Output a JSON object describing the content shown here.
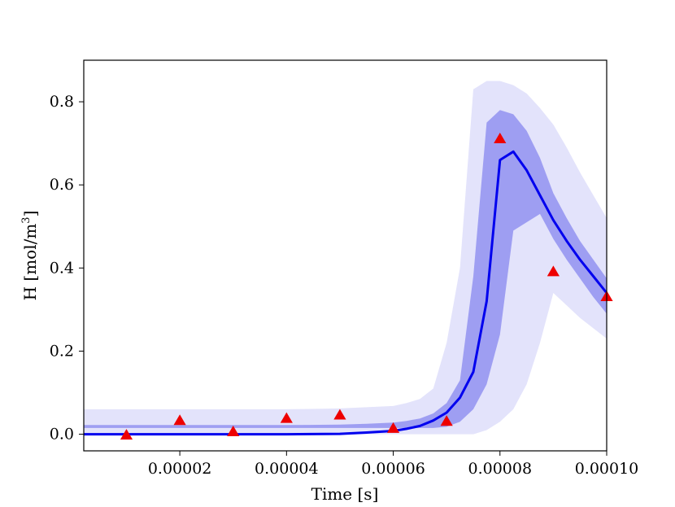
{
  "chart_data": {
    "type": "line",
    "xlabel": "Time [s]",
    "ylabel_main": "H [mol/m",
    "ylabel_sup": "3",
    "ylabel_close": "]",
    "xlim": [
      2e-06,
      0.0001
    ],
    "ylim": [
      -0.04,
      0.9
    ],
    "x_ticks": [
      {
        "value": 2e-05,
        "label": "0.00002"
      },
      {
        "value": 4e-05,
        "label": "0.00004"
      },
      {
        "value": 6e-05,
        "label": "0.00006"
      },
      {
        "value": 8e-05,
        "label": "0.00008"
      },
      {
        "value": 0.0001,
        "label": "0.00010"
      }
    ],
    "y_ticks": [
      {
        "value": 0.0,
        "label": "0.0"
      },
      {
        "value": 0.2,
        "label": "0.2"
      },
      {
        "value": 0.4,
        "label": "0.4"
      },
      {
        "value": 0.6,
        "label": "0.6"
      },
      {
        "value": 0.8,
        "label": "0.8"
      }
    ],
    "grid": false,
    "colors": {
      "outer_band": "#e3e3fb",
      "inner_band": "#9e9ef2",
      "mean_line": "#0000ee",
      "markers": "#ee0000"
    },
    "mean": {
      "x": [
        2e-06,
        1e-05,
        2e-05,
        3e-05,
        4e-05,
        5e-05,
        5.5e-05,
        6e-05,
        6.25e-05,
        6.5e-05,
        6.75e-05,
        7e-05,
        7.25e-05,
        7.5e-05,
        7.75e-05,
        8e-05,
        8.25e-05,
        8.5e-05,
        8.75e-05,
        9e-05,
        9.25e-05,
        9.5e-05,
        9.75e-05,
        0.0001
      ],
      "y": [
        0.0,
        0.0,
        0.0,
        0.0,
        0.0,
        0.001,
        0.004,
        0.008,
        0.013,
        0.02,
        0.033,
        0.052,
        0.088,
        0.15,
        0.32,
        0.66,
        0.68,
        0.635,
        0.575,
        0.515,
        0.465,
        0.42,
        0.38,
        0.34
      ]
    },
    "outer_band": {
      "x": [
        2e-06,
        1e-05,
        2e-05,
        3e-05,
        4e-05,
        5e-05,
        5.5e-05,
        6e-05,
        6.25e-05,
        6.5e-05,
        6.75e-05,
        7e-05,
        7.25e-05,
        7.5e-05,
        7.75e-05,
        8e-05,
        8.25e-05,
        8.5e-05,
        8.75e-05,
        9e-05,
        9.25e-05,
        9.5e-05,
        9.75e-05,
        0.0001
      ],
      "lower": [
        0.0,
        0.0,
        0.0,
        0.0,
        0.0,
        0.0,
        0.0,
        0.0,
        0.0,
        0.0,
        0.0,
        0.0,
        0.0,
        0.0,
        0.01,
        0.03,
        0.06,
        0.12,
        0.22,
        0.34,
        0.31,
        0.28,
        0.255,
        0.23
      ],
      "upper": [
        0.06,
        0.06,
        0.06,
        0.06,
        0.06,
        0.062,
        0.065,
        0.068,
        0.075,
        0.085,
        0.11,
        0.22,
        0.4,
        0.83,
        0.85,
        0.85,
        0.84,
        0.82,
        0.785,
        0.745,
        0.69,
        0.63,
        0.575,
        0.52
      ]
    },
    "inner_band": {
      "x": [
        2e-06,
        1e-05,
        2e-05,
        3e-05,
        4e-05,
        5e-05,
        5.5e-05,
        6e-05,
        6.25e-05,
        6.5e-05,
        6.75e-05,
        7e-05,
        7.25e-05,
        7.5e-05,
        7.75e-05,
        8e-05,
        8.25e-05,
        8.5e-05,
        8.75e-05,
        9e-05,
        9.25e-05,
        9.5e-05,
        9.75e-05,
        0.0001
      ],
      "lower": [
        0.015,
        0.015,
        0.015,
        0.015,
        0.015,
        0.015,
        0.015,
        0.015,
        0.015,
        0.015,
        0.015,
        0.018,
        0.03,
        0.06,
        0.12,
        0.24,
        0.49,
        0.51,
        0.53,
        0.47,
        0.42,
        0.375,
        0.33,
        0.29
      ],
      "upper": [
        0.022,
        0.022,
        0.022,
        0.022,
        0.022,
        0.023,
        0.025,
        0.028,
        0.032,
        0.038,
        0.05,
        0.075,
        0.13,
        0.38,
        0.75,
        0.78,
        0.77,
        0.73,
        0.665,
        0.58,
        0.52,
        0.465,
        0.42,
        0.375
      ]
    },
    "observations": {
      "marker": "triangle",
      "x": [
        1e-05,
        2e-05,
        3e-05,
        4e-05,
        5e-05,
        6e-05,
        7e-05,
        8e-05,
        9e-05,
        0.0001
      ],
      "y": [
        -0.003,
        0.032,
        0.005,
        0.037,
        0.045,
        0.013,
        0.03,
        0.71,
        0.39,
        0.33
      ]
    }
  }
}
